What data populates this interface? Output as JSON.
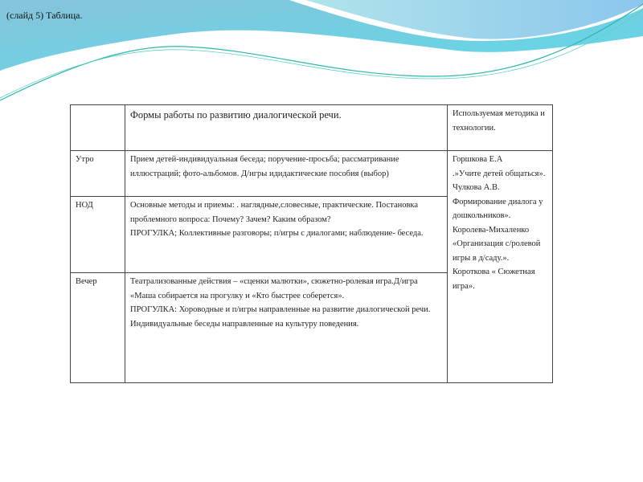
{
  "slide": {
    "title": "(слайд 5) Таблица."
  },
  "colors": {
    "wave_blue": "#7cc8de",
    "wave_light": "#a8e0ea",
    "wave_line": "#2bb5b0"
  },
  "table": {
    "header": {
      "col1": "",
      "col2": "Формы работы по развитию диалогической речи.",
      "col3": "Используемая методика и технологии."
    },
    "rows": [
      {
        "label": "Утро",
        "lines": [
          "Прием детей-индивидуальная беседа; поручение-просьба; рассматривание иллюстраций; фото-альбомов. Д/игры идидактические пособия (выбор)"
        ]
      },
      {
        "label": "НОД",
        "lines": [
          "Основные методы и приемы: . наглядные,словесные, практические. Постановка проблемного вопроса: Почему? Зачем? Каким образом?",
          "ПРОГУЛКА; Коллективные разговоры; п/игры с диалогами; наблюдение- беседа."
        ]
      },
      {
        "label": "Вечер",
        "lines": [
          "Театрализованные действия – «сценки малютки», сюжетно-ролевая игра.Д/игра «Маша собирается на прогулку и «Кто быстрее соберется».",
          "ПРОГУЛКА: Хороводные и  п/игры направленные на развитие диалогической речи.",
          "Индивидуальные  беседы направленные на культуру поведения."
        ]
      }
    ],
    "methods": [
      "Горшкова Е.А",
      " .»Учите детей общаться».",
      "Чулкова А.В. Формирование диалога у дошкольников».",
      "Королева-Михаленко «Организация с/ролевой игры в д/саду.».",
      "Короткова       « Сюжетная игра»."
    ]
  }
}
